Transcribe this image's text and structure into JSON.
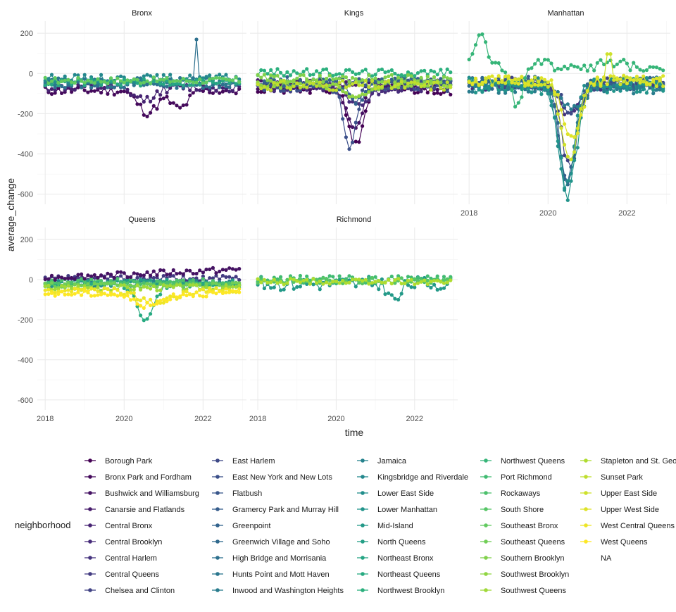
{
  "chart_data": {
    "type": "line",
    "facet_by": "borough",
    "xlabel": "time",
    "ylabel": "average_change",
    "x_ticks": [
      "2018",
      "2020",
      "2022"
    ],
    "y_ticks": [
      200,
      0,
      -200,
      -400,
      -600
    ],
    "ylim": [
      -650,
      260
    ],
    "xlim": [
      2017.8,
      2023.1
    ],
    "grid": true,
    "legend": {
      "title": "neighborhood",
      "position": "bottom",
      "columns": 5
    },
    "colors": {
      "grid_major": "#ebebeb",
      "grid_minor": "#f4f4f4",
      "viridis": [
        "#440154",
        "#472d7b",
        "#3b528b",
        "#2c728e",
        "#21918c",
        "#28ae80",
        "#5ec962",
        "#addc30",
        "#fde725"
      ],
      "na": "#7f7f7f"
    },
    "neighborhoods": [
      "Borough Park",
      "Bronx Park and Fordham",
      "Bushwick and Williamsburg",
      "Canarsie and Flatlands",
      "Central Bronx",
      "Central Brooklyn",
      "Central Harlem",
      "Central Queens",
      "Chelsea and Clinton",
      "East Harlem",
      "East New York and New Lots",
      "Flatbush",
      "Gramercy Park and Murray Hill",
      "Greenpoint",
      "Greenwich Village and Soho",
      "High Bridge and Morrisania",
      "Hunts Point and Mott Haven",
      "Inwood and Washington Heights",
      "Jamaica",
      "Kingsbridge and Riverdale",
      "Lower East Side",
      "Lower Manhattan",
      "Mid-Island",
      "North Queens",
      "Northeast Bronx",
      "Northeast Queens",
      "Northwest Brooklyn",
      "Northwest Queens",
      "Port Richmond",
      "Rockaways",
      "South Shore",
      "Southeast Bronx",
      "Southeast Queens",
      "Southern Brooklyn",
      "Southwest Brooklyn",
      "Southwest Queens",
      "Stapleton and St. George",
      "Sunset Park",
      "Upper East Side",
      "Upper West Side",
      "West Central Queens",
      "West Queens",
      "NA"
    ],
    "facets": [
      {
        "name": "Bronx",
        "series": [
          {
            "neighborhood": "Bronx Park and Fordham",
            "base": -85,
            "amp": 22,
            "dips": [
              {
                "t": 2020.6,
                "depth": -110,
                "w": 0.35
              },
              {
                "t": 2021.4,
                "depth": -90,
                "w": 0.3
              }
            ],
            "spikes": [],
            "seed": 11
          },
          {
            "neighborhood": "Central Bronx",
            "base": -70,
            "amp": 20,
            "dips": [
              {
                "t": 2020.5,
                "depth": -60,
                "w": 0.4
              }
            ],
            "spikes": [],
            "seed": 12
          },
          {
            "neighborhood": "High Bridge and Morrisania",
            "base": -55,
            "amp": 18,
            "dips": [],
            "spikes": [
              {
                "t": 2021.83,
                "height": 220
              }
            ],
            "seed": 13
          },
          {
            "neighborhood": "Hunts Point and Mott Haven",
            "base": -40,
            "amp": 18,
            "dips": [],
            "spikes": [],
            "seed": 14
          },
          {
            "neighborhood": "Kingsbridge and Riverdale",
            "base": -25,
            "amp": 20,
            "dips": [],
            "spikes": [],
            "seed": 15
          },
          {
            "neighborhood": "Northeast Bronx",
            "base": -45,
            "amp": 18,
            "dips": [],
            "spikes": [],
            "seed": 16
          },
          {
            "neighborhood": "Southeast Bronx",
            "base": -35,
            "amp": 16,
            "dips": [],
            "spikes": [],
            "seed": 17
          }
        ]
      },
      {
        "name": "Kings",
        "series": [
          {
            "neighborhood": "Borough Park",
            "base": -80,
            "amp": 25,
            "dips": [
              {
                "t": 2020.5,
                "depth": -280,
                "w": 0.25
              }
            ],
            "spikes": [],
            "seed": 21
          },
          {
            "neighborhood": "Bushwick and Williamsburg",
            "base": -60,
            "amp": 22,
            "dips": [
              {
                "t": 2020.45,
                "depth": -200,
                "w": 0.3
              }
            ],
            "spikes": [],
            "seed": 22
          },
          {
            "neighborhood": "Canarsie and Flatlands",
            "base": -50,
            "amp": 20,
            "dips": [],
            "spikes": [],
            "seed": 23
          },
          {
            "neighborhood": "Central Brooklyn",
            "base": -70,
            "amp": 22,
            "dips": [
              {
                "t": 2020.6,
                "depth": -80,
                "w": 0.4
              }
            ],
            "spikes": [],
            "seed": 24
          },
          {
            "neighborhood": "East New York and New Lots",
            "base": -65,
            "amp": 25,
            "dips": [
              {
                "t": 2020.35,
                "depth": -300,
                "w": 0.22
              }
            ],
            "spikes": [],
            "seed": 25
          },
          {
            "neighborhood": "Flatbush",
            "base": -45,
            "amp": 22,
            "dips": [],
            "spikes": [],
            "seed": 26
          },
          {
            "neighborhood": "Greenpoint",
            "base": -40,
            "amp": 25,
            "dips": [
              {
                "t": 2020.5,
                "depth": -90,
                "w": 0.35
              }
            ],
            "spikes": [],
            "seed": 27
          },
          {
            "neighborhood": "Northwest Brooklyn",
            "base": 5,
            "amp": 18,
            "dips": [],
            "spikes": [],
            "seed": 28
          },
          {
            "neighborhood": "Southern Brooklyn",
            "base": -25,
            "amp": 20,
            "dips": [],
            "spikes": [],
            "seed": 29
          },
          {
            "neighborhood": "Southwest Brooklyn",
            "base": -55,
            "amp": 20,
            "dips": [
              {
                "t": 2020.55,
                "depth": -70,
                "w": 0.4
              }
            ],
            "spikes": [],
            "seed": 30
          },
          {
            "neighborhood": "Sunset Park",
            "base": -60,
            "amp": 25,
            "dips": [],
            "spikes": [],
            "seed": 31
          }
        ]
      },
      {
        "name": "Manhattan",
        "series": [
          {
            "neighborhood": "Central Harlem",
            "base": -60,
            "amp": 25,
            "dips": [
              {
                "t": 2020.55,
                "depth": -150,
                "w": 0.3
              }
            ],
            "spikes": [],
            "seed": 41
          },
          {
            "neighborhood": "Chelsea and Clinton",
            "base": -50,
            "amp": 30,
            "dips": [
              {
                "t": 2020.55,
                "depth": -420,
                "w": 0.28
              }
            ],
            "spikes": [],
            "seed": 42
          },
          {
            "neighborhood": "East Harlem",
            "base": -55,
            "amp": 25,
            "dips": [
              {
                "t": 2020.6,
                "depth": -130,
                "w": 0.35
              }
            ],
            "spikes": [],
            "seed": 43
          },
          {
            "neighborhood": "Gramercy Park and Murray Hill",
            "base": -45,
            "amp": 30,
            "dips": [
              {
                "t": 2020.5,
                "depth": -480,
                "w": 0.3
              }
            ],
            "spikes": [],
            "seed": 44
          },
          {
            "neighborhood": "Greenwich Village and Soho",
            "base": -50,
            "amp": 35,
            "dips": [
              {
                "t": 2020.5,
                "depth": -500,
                "w": 0.28
              }
            ],
            "spikes": [],
            "seed": 45
          },
          {
            "neighborhood": "Inwood and Washington Heights",
            "base": -70,
            "amp": 30,
            "dips": [
              {
                "t": 2020.6,
                "depth": -100,
                "w": 0.35
              }
            ],
            "spikes": [],
            "seed": 46
          },
          {
            "neighborhood": "Lower East Side",
            "base": -55,
            "amp": 35,
            "dips": [
              {
                "t": 2020.45,
                "depth": -520,
                "w": 0.28
              }
            ],
            "spikes": [],
            "seed": 47
          },
          {
            "neighborhood": "Lower Manhattan",
            "base": -60,
            "amp": 40,
            "dips": [
              {
                "t": 2020.5,
                "depth": -540,
                "w": 0.3
              }
            ],
            "spikes": [],
            "seed": 48
          },
          {
            "neighborhood": "Northwest Queens",
            "base": 40,
            "amp": 30,
            "dips": [
              {
                "t": 2018.3,
                "depth": 180,
                "w": 0.2
              },
              {
                "t": 2019.2,
                "depth": -180,
                "w": 0.25
              }
            ],
            "spikes": [],
            "seed": 49
          },
          {
            "neighborhood": "Upper East Side",
            "base": -40,
            "amp": 25,
            "dips": [
              {
                "t": 2020.55,
                "depth": -380,
                "w": 0.3
              }
            ],
            "spikes": [
              {
                "t": 2021.55,
                "height": 140
              }
            ],
            "seed": 50
          },
          {
            "neighborhood": "Upper West Side",
            "base": -35,
            "amp": 25,
            "dips": [
              {
                "t": 2020.6,
                "depth": -300,
                "w": 0.32
              }
            ],
            "spikes": [],
            "seed": 51
          }
        ]
      },
      {
        "name": "Queens",
        "series": [
          {
            "neighborhood": "Central Queens",
            "base": 5,
            "amp": 15,
            "dips": [],
            "spikes": [],
            "seed": 61
          },
          {
            "neighborhood": "Jamaica",
            "base": -20,
            "amp": 15,
            "dips": [],
            "spikes": [],
            "seed": 62
          },
          {
            "neighborhood": "North Queens",
            "base": -15,
            "amp": 15,
            "dips": [],
            "spikes": [],
            "seed": 63
          },
          {
            "neighborhood": "Northeast Queens",
            "base": -25,
            "amp": 15,
            "dips": [
              {
                "t": 2020.55,
                "depth": -170,
                "w": 0.3
              }
            ],
            "spikes": [],
            "seed": 64
          },
          {
            "neighborhood": "Rockaways",
            "base": -10,
            "amp": 15,
            "dips": [],
            "spikes": [],
            "seed": 65
          },
          {
            "neighborhood": "Southeast Queens",
            "base": -30,
            "amp": 15,
            "dips": [],
            "spikes": [],
            "seed": 66
          },
          {
            "neighborhood": "Southwest Queens",
            "base": -40,
            "amp": 15,
            "dips": [],
            "spikes": [],
            "seed": 67
          },
          {
            "neighborhood": "West Central Queens",
            "base": -55,
            "amp": 15,
            "dips": [
              {
                "t": 2020.8,
                "depth": -60,
                "w": 0.6
              }
            ],
            "spikes": [],
            "seed": 68
          },
          {
            "neighborhood": "West Queens",
            "base": -70,
            "amp": 15,
            "dips": [
              {
                "t": 2020.6,
                "depth": -60,
                "w": 0.5
              }
            ],
            "spikes": [],
            "seed": 69
          },
          {
            "neighborhood": "Bushwick and Williamsburg",
            "base": 10,
            "amp": 15,
            "dips": [],
            "spikes": [],
            "trend": 40,
            "seed": 70
          }
        ]
      },
      {
        "name": "Richmond",
        "series": [
          {
            "neighborhood": "Mid-Island",
            "base": -20,
            "amp": 35,
            "dips": [
              {
                "t": 2021.5,
                "depth": -90,
                "w": 0.2
              }
            ],
            "spikes": [],
            "seed": 81
          },
          {
            "neighborhood": "Port Richmond",
            "base": 0,
            "amp": 20,
            "dips": [],
            "spikes": [],
            "seed": 82
          },
          {
            "neighborhood": "South Shore",
            "base": -5,
            "amp": 15,
            "dips": [],
            "spikes": [],
            "seed": 83
          },
          {
            "neighborhood": "Stapleton and St. George",
            "base": -10,
            "amp": 15,
            "dips": [],
            "spikes": [],
            "seed": 84
          }
        ]
      }
    ]
  }
}
